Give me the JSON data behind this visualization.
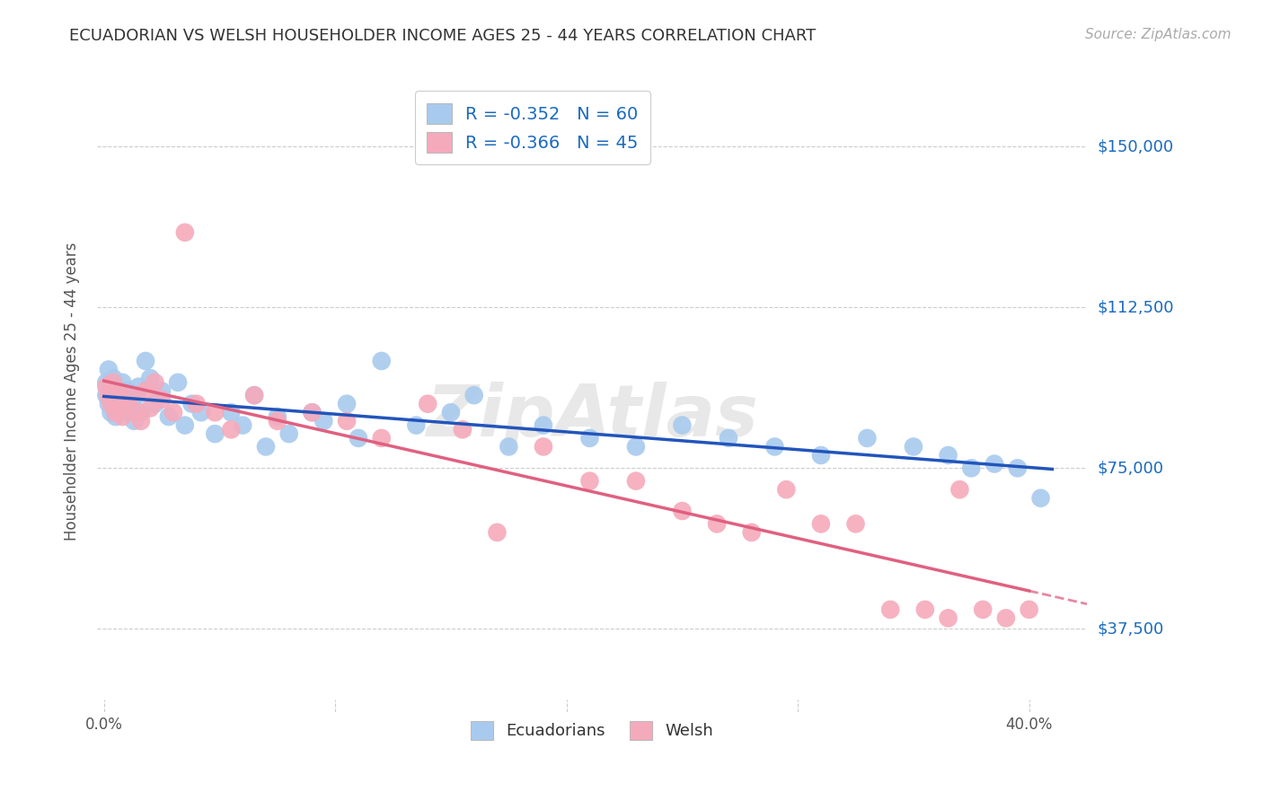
{
  "title": "ECUADORIAN VS WELSH HOUSEHOLDER INCOME AGES 25 - 44 YEARS CORRELATION CHART",
  "source": "Source: ZipAtlas.com",
  "ylabel": "Householder Income Ages 25 - 44 years",
  "ytick_values": [
    37500,
    75000,
    112500,
    150000
  ],
  "ytick_labels": [
    "$37,500",
    "$75,000",
    "$112,500",
    "$150,000"
  ],
  "xlim": [
    -0.003,
    0.425
  ],
  "ylim": [
    18000,
    168000
  ],
  "blue_color": "#A8CAEE",
  "pink_color": "#F5AABB",
  "blue_line_color": "#2255BB",
  "pink_line_color": "#E06080",
  "grid_color": "#cccccc",
  "background_color": "#ffffff",
  "title_color": "#333333",
  "axis_label_color": "#555555",
  "legend_value_color": "#1a6abf",
  "watermark": "ZipAtlas",
  "blue_R": -0.352,
  "blue_N": 60,
  "pink_R": -0.366,
  "pink_N": 45,
  "ecu_x": [
    0.001,
    0.001,
    0.002,
    0.002,
    0.003,
    0.003,
    0.004,
    0.004,
    0.005,
    0.005,
    0.006,
    0.007,
    0.008,
    0.009,
    0.01,
    0.011,
    0.012,
    0.013,
    0.014,
    0.015,
    0.016,
    0.018,
    0.02,
    0.022,
    0.025,
    0.028,
    0.032,
    0.035,
    0.038,
    0.042,
    0.048,
    0.055,
    0.06,
    0.065,
    0.07,
    0.075,
    0.08,
    0.09,
    0.095,
    0.105,
    0.11,
    0.12,
    0.135,
    0.15,
    0.16,
    0.175,
    0.19,
    0.21,
    0.23,
    0.25,
    0.27,
    0.29,
    0.31,
    0.33,
    0.35,
    0.365,
    0.375,
    0.385,
    0.395,
    0.405
  ],
  "ecu_y": [
    95000,
    92000,
    98000,
    90000,
    94000,
    88000,
    96000,
    91000,
    93000,
    87000,
    92000,
    89000,
    95000,
    91000,
    93000,
    88000,
    90000,
    86000,
    92000,
    94000,
    88000,
    100000,
    96000,
    90000,
    93000,
    87000,
    95000,
    85000,
    90000,
    88000,
    83000,
    88000,
    85000,
    92000,
    80000,
    87000,
    83000,
    88000,
    86000,
    90000,
    82000,
    100000,
    85000,
    88000,
    92000,
    80000,
    85000,
    82000,
    80000,
    85000,
    82000,
    80000,
    78000,
    82000,
    80000,
    78000,
    75000,
    76000,
    75000,
    68000
  ],
  "welsh_x": [
    0.001,
    0.002,
    0.003,
    0.004,
    0.005,
    0.006,
    0.007,
    0.008,
    0.01,
    0.012,
    0.014,
    0.016,
    0.018,
    0.02,
    0.022,
    0.025,
    0.03,
    0.035,
    0.04,
    0.048,
    0.055,
    0.065,
    0.075,
    0.09,
    0.105,
    0.12,
    0.14,
    0.155,
    0.17,
    0.19,
    0.21,
    0.23,
    0.25,
    0.265,
    0.28,
    0.295,
    0.31,
    0.325,
    0.34,
    0.355,
    0.365,
    0.37,
    0.38,
    0.39,
    0.4
  ],
  "welsh_y": [
    94000,
    92000,
    90000,
    95000,
    88000,
    93000,
    91000,
    87000,
    90000,
    92000,
    88000,
    86000,
    93000,
    89000,
    95000,
    91000,
    88000,
    130000,
    90000,
    88000,
    84000,
    92000,
    86000,
    88000,
    86000,
    82000,
    90000,
    84000,
    60000,
    80000,
    72000,
    72000,
    65000,
    62000,
    60000,
    70000,
    62000,
    62000,
    42000,
    42000,
    40000,
    70000,
    42000,
    40000,
    42000
  ]
}
